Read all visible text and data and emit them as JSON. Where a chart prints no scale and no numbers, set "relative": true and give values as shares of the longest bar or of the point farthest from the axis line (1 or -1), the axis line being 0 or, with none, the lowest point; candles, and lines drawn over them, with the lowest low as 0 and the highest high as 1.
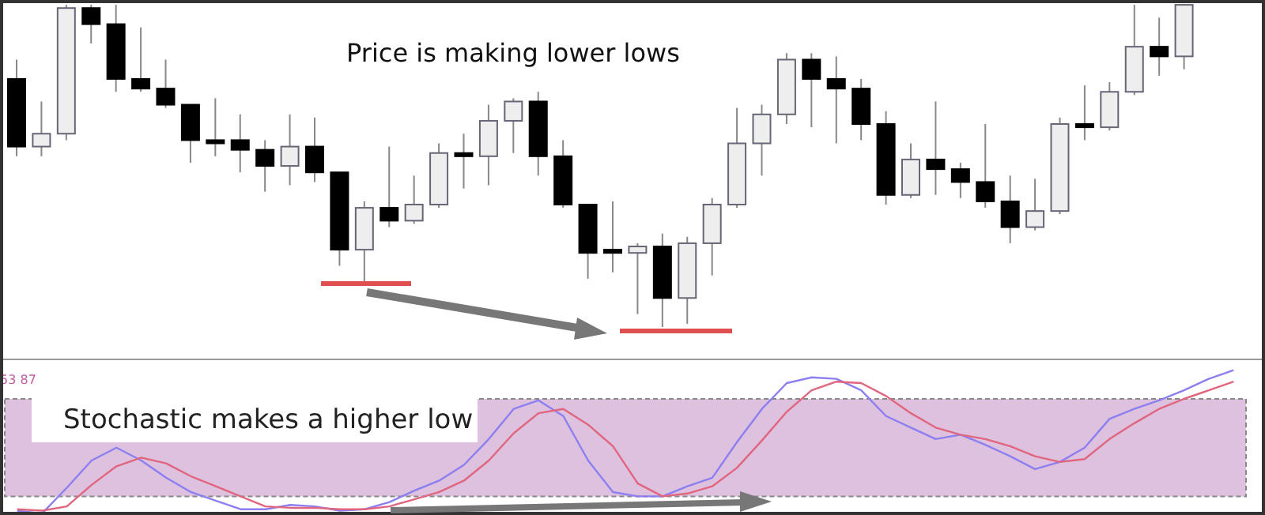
{
  "chart_data": [
    {
      "type": "candlestick",
      "relative": true,
      "tick_labels": false,
      "annotations": [
        "Price is making lower lows"
      ],
      "categories": [
        null,
        null,
        null,
        null,
        null,
        null,
        null,
        null,
        null,
        null,
        null,
        null,
        null,
        null,
        null,
        null,
        null,
        null,
        null,
        null,
        null,
        null,
        null,
        null,
        null,
        null,
        null,
        null,
        null,
        null,
        null,
        null,
        null,
        null,
        null,
        null,
        null,
        null,
        null,
        null,
        null,
        null,
        null,
        null,
        null,
        null,
        null,
        null
      ],
      "ohlc": [
        [
          0.77,
          0.83,
          0.53,
          0.56
        ],
        [
          0.56,
          0.7,
          0.53,
          0.6
        ],
        [
          0.6,
          1,
          0.58,
          0.99
        ],
        [
          0.99,
          1,
          0.88,
          0.94
        ],
        [
          0.94,
          1,
          0.73,
          0.77
        ],
        [
          0.77,
          0.93,
          0.73,
          0.74
        ],
        [
          0.74,
          0.83,
          0.68,
          0.69
        ],
        [
          0.69,
          0.69,
          0.51,
          0.58
        ],
        [
          0.58,
          0.71,
          0.53,
          0.57
        ],
        [
          0.58,
          0.66,
          0.48,
          0.55
        ],
        [
          0.55,
          0.58,
          0.42,
          0.5
        ],
        [
          0.5,
          0.66,
          0.44,
          0.56
        ],
        [
          0.56,
          0.65,
          0.45,
          0.48
        ],
        [
          0.48,
          0.48,
          0.19,
          0.24
        ],
        [
          0.24,
          0.39,
          0.13,
          0.37
        ],
        [
          0.37,
          0.56,
          0.31,
          0.33
        ],
        [
          0.33,
          0.47,
          0.32,
          0.38
        ],
        [
          0.38,
          0.57,
          0.37,
          0.54
        ],
        [
          0.54,
          0.6,
          0.43,
          0.53
        ],
        [
          0.53,
          0.69,
          0.44,
          0.64
        ],
        [
          0.64,
          0.71,
          0.54,
          0.7
        ],
        [
          0.7,
          0.73,
          0.47,
          0.53
        ],
        [
          0.53,
          0.58,
          0.37,
          0.38
        ],
        [
          0.38,
          0.38,
          0.15,
          0.23
        ],
        [
          0.24,
          0.39,
          0.17,
          0.23
        ],
        [
          0.23,
          0.26,
          0.04,
          0.25
        ],
        [
          0.25,
          0.29,
          0,
          0.09
        ],
        [
          0.09,
          0.28,
          0.01,
          0.26
        ],
        [
          0.26,
          0.4,
          0.16,
          0.38
        ],
        [
          0.38,
          0.68,
          0.37,
          0.57
        ],
        [
          0.57,
          0.69,
          0.47,
          0.66
        ],
        [
          0.66,
          0.85,
          0.63,
          0.83
        ],
        [
          0.83,
          0.85,
          0.62,
          0.77
        ],
        [
          0.77,
          0.84,
          0.57,
          0.74
        ],
        [
          0.74,
          0.77,
          0.58,
          0.63
        ],
        [
          0.63,
          0.67,
          0.38,
          0.41
        ],
        [
          0.41,
          0.57,
          0.4,
          0.52
        ],
        [
          0.52,
          0.7,
          0.41,
          0.49
        ],
        [
          0.49,
          0.51,
          0.4,
          0.45
        ],
        [
          0.45,
          0.63,
          0.37,
          0.39
        ],
        [
          0.39,
          0.47,
          0.26,
          0.31
        ],
        [
          0.31,
          0.46,
          0.3,
          0.36
        ],
        [
          0.36,
          0.65,
          0.35,
          0.63
        ],
        [
          0.63,
          0.75,
          0.58,
          0.62
        ],
        [
          0.62,
          0.76,
          0.61,
          0.73
        ],
        [
          0.73,
          1,
          0.72,
          0.87
        ],
        [
          0.87,
          0.96,
          0.78,
          0.84
        ],
        [
          0.84,
          1,
          0.8,
          1
        ]
      ]
    },
    {
      "type": "line",
      "relative": true,
      "tick_labels": false,
      "annotations": [
        "Stochastic makes a higher low",
        "53 87"
      ],
      "categories": [
        null,
        null,
        null,
        null,
        null,
        null,
        null,
        null,
        null,
        null,
        null,
        null,
        null,
        null,
        null,
        null,
        null,
        null,
        null,
        null,
        null,
        null,
        null,
        null,
        null,
        null,
        null,
        null,
        null,
        null,
        null,
        null,
        null,
        null,
        null,
        null,
        null,
        null,
        null,
        null,
        null,
        null,
        null,
        null,
        null,
        null,
        null,
        null,
        null,
        null
      ],
      "bands": [
        {
          "axis": "y",
          "from": 0.12,
          "to": 0.8,
          "color": "#dec0df"
        }
      ],
      "series": [
        {
          "color": "#8c7ff0",
          "values": [
            0.02,
            0,
            0.18,
            0.37,
            0.46,
            0.37,
            0.25,
            0.15,
            0.09,
            0.03,
            0.03,
            0.06,
            0.05,
            0.02,
            0.03,
            0.08,
            0.16,
            0.23,
            0.34,
            0.52,
            0.73,
            0.79,
            0.68,
            0.37,
            0.15,
            0.12,
            0.12,
            0.19,
            0.25,
            0.5,
            0.73,
            0.91,
            0.95,
            0.94,
            0.86,
            0.68,
            0.6,
            0.52,
            0.55,
            0.48,
            0.4,
            0.31,
            0.36,
            0.46,
            0.66,
            0.73,
            0.79,
            0.86,
            0.94,
            1
          ]
        },
        {
          "color": "#e0667f",
          "values": [
            0.03,
            0.02,
            0.05,
            0.2,
            0.33,
            0.39,
            0.35,
            0.26,
            0.19,
            0.12,
            0.05,
            0.04,
            0.04,
            0.03,
            0.03,
            0.05,
            0.1,
            0.15,
            0.23,
            0.37,
            0.56,
            0.7,
            0.73,
            0.62,
            0.47,
            0.21,
            0.12,
            0.14,
            0.19,
            0.32,
            0.51,
            0.71,
            0.86,
            0.92,
            0.91,
            0.82,
            0.7,
            0.6,
            0.55,
            0.52,
            0.47,
            0.4,
            0.36,
            0.38,
            0.52,
            0.63,
            0.73,
            0.8,
            0.86,
            0.92
          ]
        }
      ]
    }
  ]
}
